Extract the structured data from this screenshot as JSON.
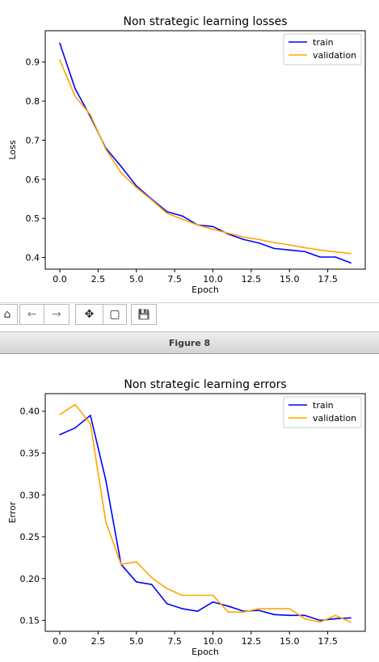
{
  "colors": {
    "train": "#0000ff",
    "validation": "#ffa500",
    "axes": "#000000"
  },
  "toolbar": {
    "buttons": [
      {
        "name": "home-icon",
        "glyph": "⌂"
      },
      {
        "name": "back-arrow-icon",
        "glyph": "←"
      },
      {
        "name": "forward-arrow-icon",
        "glyph": "→"
      },
      {
        "name": "pan-move-icon",
        "glyph": "✥"
      },
      {
        "name": "zoom-rectangle-icon",
        "glyph": "▢"
      },
      {
        "name": "save-icon",
        "glyph": "💾"
      }
    ]
  },
  "window": {
    "title": "Figure 8"
  },
  "chart_data": [
    {
      "type": "line",
      "title": "Non strategic learning losses",
      "xlabel": "Epoch",
      "ylabel": "Loss",
      "xlim": [
        -0.95,
        19.95
      ],
      "ylim": [
        0.37,
        0.98
      ],
      "xticks": [
        0.0,
        2.5,
        5.0,
        7.5,
        10.0,
        12.5,
        15.0,
        17.5
      ],
      "xtick_labels": [
        "0.0",
        "2.5",
        "5.0",
        "7.5",
        "10.0",
        "12.5",
        "15.0",
        "17.5"
      ],
      "yticks": [
        0.4,
        0.5,
        0.6,
        0.7,
        0.8,
        0.9
      ],
      "ytick_labels": [
        "0.4",
        "0.5",
        "0.6",
        "0.7",
        "0.8",
        "0.9"
      ],
      "legend_position": "top-right",
      "x": [
        0,
        1,
        2,
        3,
        4,
        5,
        6,
        7,
        8,
        9,
        10,
        11,
        12,
        13,
        14,
        15,
        16,
        17,
        18,
        19
      ],
      "series": [
        {
          "name": "train",
          "values": [
            0.948,
            0.832,
            0.76,
            0.68,
            0.633,
            0.583,
            0.549,
            0.517,
            0.506,
            0.483,
            0.479,
            0.46,
            0.446,
            0.437,
            0.423,
            0.419,
            0.415,
            0.401,
            0.401,
            0.386
          ]
        },
        {
          "name": "validation",
          "values": [
            0.905,
            0.812,
            0.765,
            0.677,
            0.617,
            0.579,
            0.547,
            0.513,
            0.498,
            0.483,
            0.472,
            0.462,
            0.452,
            0.446,
            0.438,
            0.432,
            0.425,
            0.419,
            0.414,
            0.41
          ]
        }
      ]
    },
    {
      "type": "line",
      "title": "Non strategic learning errors",
      "xlabel": "Epoch",
      "ylabel": "Error",
      "xlim": [
        -0.95,
        19.95
      ],
      "ylim": [
        0.137,
        0.421
      ],
      "xticks": [
        0.0,
        2.5,
        5.0,
        7.5,
        10.0,
        12.5,
        15.0,
        17.5
      ],
      "xtick_labels": [
        "0.0",
        "2.5",
        "5.0",
        "7.5",
        "10.0",
        "12.5",
        "15.0",
        "17.5"
      ],
      "yticks": [
        0.15,
        0.2,
        0.25,
        0.3,
        0.35,
        0.4
      ],
      "ytick_labels": [
        "0.15",
        "0.20",
        "0.25",
        "0.30",
        "0.35",
        "0.40"
      ],
      "legend_position": "top-right",
      "x": [
        0,
        1,
        2,
        3,
        4,
        5,
        6,
        7,
        8,
        9,
        10,
        11,
        12,
        13,
        14,
        15,
        16,
        17,
        18,
        19
      ],
      "series": [
        {
          "name": "train",
          "values": [
            0.372,
            0.38,
            0.395,
            0.318,
            0.217,
            0.196,
            0.193,
            0.17,
            0.164,
            0.161,
            0.172,
            0.167,
            0.161,
            0.162,
            0.157,
            0.156,
            0.156,
            0.15,
            0.152,
            0.153
          ]
        },
        {
          "name": "validation",
          "values": [
            0.396,
            0.408,
            0.385,
            0.268,
            0.217,
            0.22,
            0.201,
            0.188,
            0.18,
            0.18,
            0.18,
            0.16,
            0.16,
            0.164,
            0.164,
            0.164,
            0.152,
            0.148,
            0.156,
            0.148
          ]
        }
      ]
    }
  ]
}
